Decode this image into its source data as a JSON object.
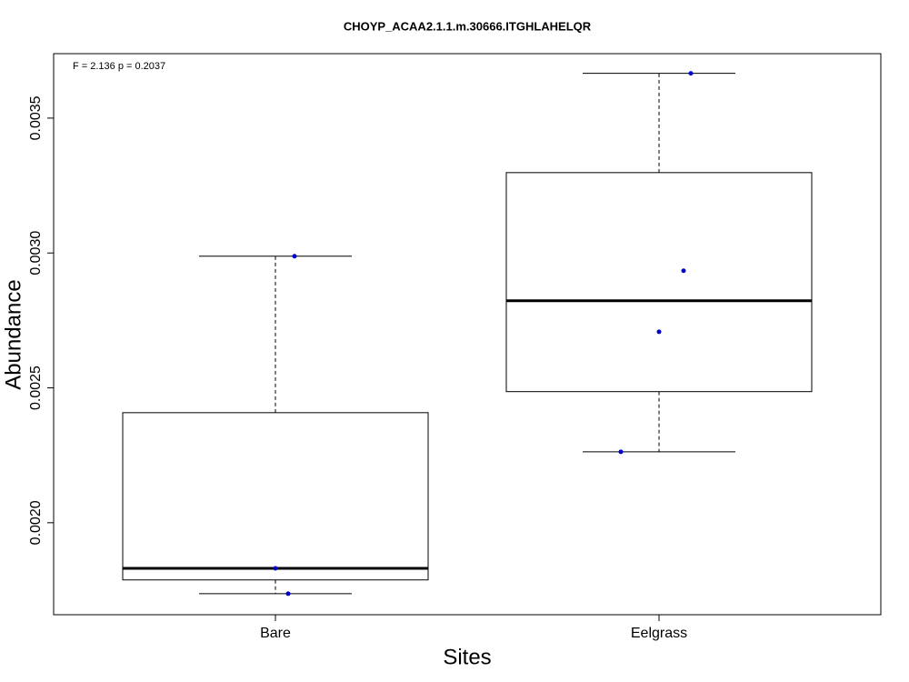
{
  "chart_data": {
    "type": "box",
    "title": "CHOYP_ACAA2.1.1.m.30666.ITGHLAHELQR",
    "annotation": "F = 2.136 p = 0.2037",
    "x_label": "Sites",
    "y_label": "Abundance",
    "categories": [
      "Bare",
      "Eelgrass"
    ],
    "boxes": [
      {
        "whisker_low": 0.001737,
        "q1": 0.001788,
        "median": 0.001831,
        "q3": 0.002408,
        "whisker_high": 0.002988,
        "points": [
          0.002988,
          0.001831,
          0.001737
        ]
      },
      {
        "whisker_low": 0.002263,
        "q1": 0.002486,
        "median": 0.002823,
        "q3": 0.003298,
        "whisker_high": 0.003666,
        "points": [
          0.003666,
          0.002934,
          0.002708,
          0.002263
        ]
      }
    ],
    "point_color": "#0000cc",
    "ylim": [
      0.001659,
      0.003739
    ],
    "yticks": [
      {
        "value": 0.002,
        "label": "0.0020"
      },
      {
        "value": 0.0025,
        "label": "0.0025"
      },
      {
        "value": 0.003,
        "label": "0.0030"
      },
      {
        "value": 0.0035,
        "label": "0.0035"
      }
    ]
  }
}
